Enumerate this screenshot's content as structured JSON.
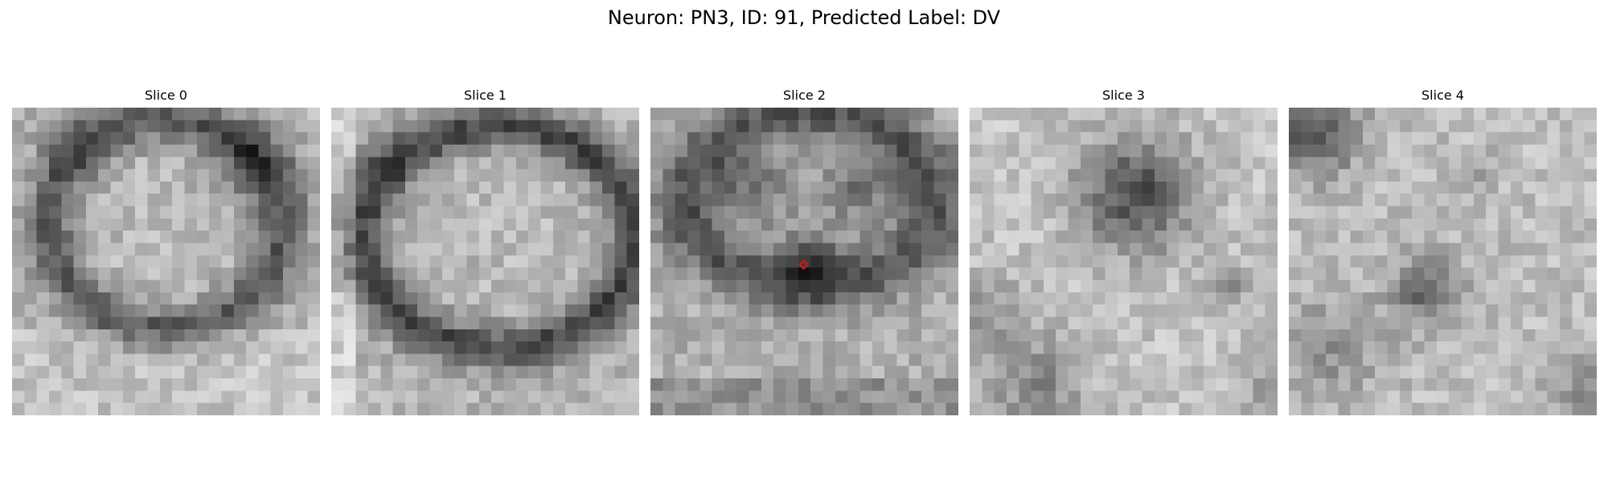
{
  "figure": {
    "title": "Neuron: PN3, ID: 91, Predicted Label: DV"
  },
  "panels": [
    {
      "label": "Slice 0",
      "marker": false
    },
    {
      "label": "Slice 1",
      "marker": false
    },
    {
      "label": "Slice 2",
      "marker": true
    },
    {
      "label": "Slice 3",
      "marker": false
    },
    {
      "label": "Slice 4",
      "marker": false
    }
  ],
  "style": {
    "background": "#ffffff",
    "marker_color": "#e01414",
    "colormap": "grayscale"
  }
}
